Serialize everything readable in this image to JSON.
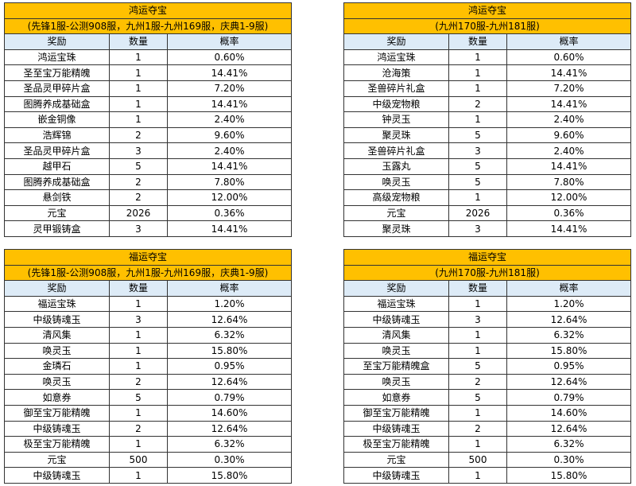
{
  "tables": [
    {
      "title": "鸿运夺宝",
      "subtitle": "(先锋1服-公测908服，九州1服-九州169服，庆典1-9服)",
      "header": [
        "奖励",
        "数量",
        "概率"
      ],
      "rows": [
        [
          "鸿运宝珠",
          1,
          "0.60%"
        ],
        [
          "圣至宝万能精魄",
          1,
          "14.41%"
        ],
        [
          "圣品灵甲碎片盒",
          1,
          "7.20%"
        ],
        [
          "图腾养成基础盒",
          1,
          "14.41%"
        ],
        [
          "嵌金铜像",
          1,
          "2.40%"
        ],
        [
          "浩辉锦",
          2,
          "9.60%"
        ],
        [
          "圣品灵甲碎片盒",
          3,
          "2.40%"
        ],
        [
          "越甲石",
          5,
          "14.41%"
        ],
        [
          "图腾养成基础盒",
          2,
          "7.80%"
        ],
        [
          "悬剑铁",
          2,
          "12.00%"
        ],
        [
          "元宝",
          2026,
          "0.36%"
        ],
        [
          "灵甲锻铸盒",
          3,
          "14.41%"
        ]
      ]
    },
    {
      "title": "鸿运夺宝",
      "subtitle": "(九州170服-九州181服)",
      "header": [
        "奖励",
        "数量",
        "概率"
      ],
      "rows": [
        [
          "鸿运宝珠",
          1,
          "0.60%"
        ],
        [
          "沧海策",
          1,
          "14.41%"
        ],
        [
          "圣兽碎片礼盒",
          1,
          "7.20%"
        ],
        [
          "中级宠物粮",
          2,
          "14.41%"
        ],
        [
          "钟灵玉",
          1,
          "2.40%"
        ],
        [
          "聚灵珠",
          5,
          "9.60%"
        ],
        [
          "圣兽碎片礼盒",
          3,
          "2.40%"
        ],
        [
          "玉露丸",
          5,
          "14.41%"
        ],
        [
          "唤灵玉",
          5,
          "7.80%"
        ],
        [
          "高级宠物粮",
          1,
          "12.00%"
        ],
        [
          "元宝",
          2026,
          "0.36%"
        ],
        [
          "聚灵珠",
          3,
          "14.41%"
        ]
      ]
    },
    {
      "title": "福运夺宝",
      "subtitle": "(先锋1服-公测908服，九州1服-九州169服，庆典1-9服)",
      "header": [
        "奖励",
        "数量",
        "概率"
      ],
      "rows": [
        [
          "福运宝珠",
          1,
          "1.20%"
        ],
        [
          "中级铸魂玉",
          3,
          "12.64%"
        ],
        [
          "清风集",
          1,
          "6.32%"
        ],
        [
          "唤灵玉",
          1,
          "15.80%"
        ],
        [
          "金璘石",
          1,
          "0.95%"
        ],
        [
          "唤灵玉",
          2,
          "12.64%"
        ],
        [
          "如意券",
          5,
          "0.79%"
        ],
        [
          "御至宝万能精魄",
          1,
          "14.60%"
        ],
        [
          "中级铸魂玉",
          2,
          "12.64%"
        ],
        [
          "极至宝万能精魄",
          1,
          "6.32%"
        ],
        [
          "元宝",
          500,
          "0.30%"
        ],
        [
          "中级铸魂玉",
          1,
          "15.80%"
        ]
      ]
    },
    {
      "title": "福运夺宝",
      "subtitle": "(九州170服-九州181服)",
      "header": [
        "奖励",
        "数量",
        "概率"
      ],
      "rows": [
        [
          "福运宝珠",
          1,
          "1.20%"
        ],
        [
          "中级铸魂玉",
          3,
          "12.64%"
        ],
        [
          "清风集",
          1,
          "6.32%"
        ],
        [
          "唤灵玉",
          1,
          "15.80%"
        ],
        [
          "至宝万能精魄盒",
          5,
          "0.95%"
        ],
        [
          "唤灵玉",
          2,
          "12.64%"
        ],
        [
          "如意券",
          5,
          "0.79%"
        ],
        [
          "御至宝万能精魄",
          1,
          "14.60%"
        ],
        [
          "中级铸魂玉",
          2,
          "12.64%"
        ],
        [
          "极至宝万能精魄",
          1,
          "6.32%"
        ],
        [
          "元宝",
          500,
          "0.30%"
        ],
        [
          "中级铸魂玉",
          1,
          "15.80%"
        ]
      ]
    }
  ]
}
